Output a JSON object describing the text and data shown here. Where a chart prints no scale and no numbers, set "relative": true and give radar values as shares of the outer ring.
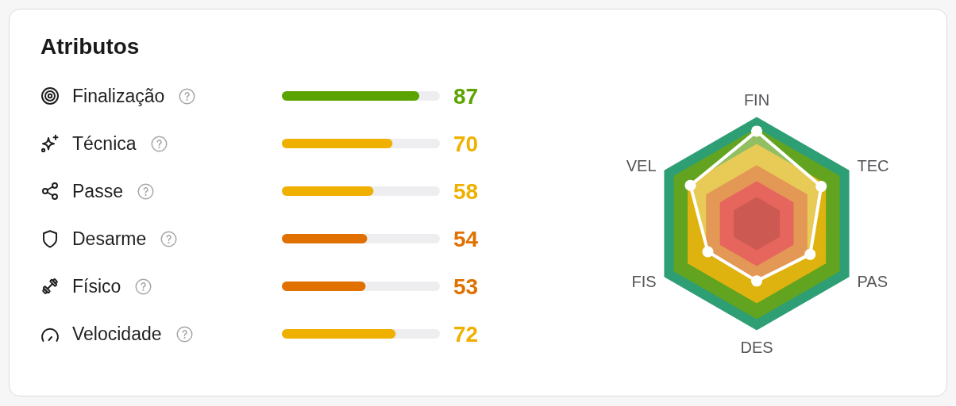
{
  "chart_data": [
    {
      "type": "bar",
      "title": "Atributos",
      "orientation": "horizontal",
      "categories": [
        "Finalização",
        "Técnica",
        "Passe",
        "Desarme",
        "Físico",
        "Velocidade"
      ],
      "values": [
        87,
        70,
        58,
        54,
        53,
        72
      ],
      "colors": [
        "#5ba300",
        "#f0b000",
        "#f0b000",
        "#e07000",
        "#e07000",
        "#f0b000"
      ],
      "xlim": [
        0,
        100
      ],
      "data_labels": true,
      "tick_labels": "y"
    },
    {
      "type": "radar",
      "categories": [
        "FIN",
        "TEC",
        "PAS",
        "DES",
        "FIS",
        "VEL"
      ],
      "relative": true,
      "marker": "circle",
      "series": [
        {
          "color": "#ffffff",
          "values": [
            0.87,
            0.7,
            0.58,
            0.54,
            0.53,
            0.72
          ]
        }
      ]
    }
  ]
}
